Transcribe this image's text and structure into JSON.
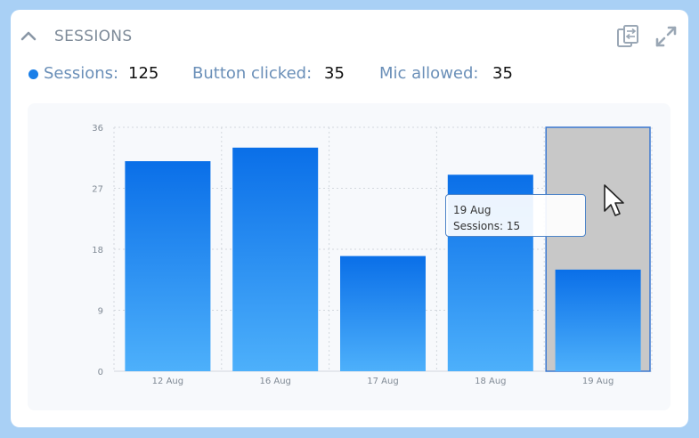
{
  "card": {
    "title": "SESSIONS",
    "icons": [
      "chevron-up-icon",
      "compare-icon",
      "expand-icon"
    ]
  },
  "stats": [
    {
      "label": "Sessions:",
      "value": "125",
      "dot_color": "#1a7fe8"
    },
    {
      "label": "Button clicked:",
      "value": "35"
    },
    {
      "label": "Mic allowed:",
      "value": "35"
    }
  ],
  "tooltip": {
    "date": "19 Aug",
    "text": "Sessions: 15"
  },
  "chart_data": {
    "type": "bar",
    "categories": [
      "12 Aug",
      "16 Aug",
      "17 Aug",
      "18 Aug",
      "19 Aug"
    ],
    "series": [
      {
        "name": "Sessions",
        "values": [
          31,
          33,
          17,
          29,
          15
        ]
      }
    ],
    "ylim": [
      0,
      36
    ],
    "yticks": [
      "0",
      "9",
      "18",
      "27",
      "36"
    ],
    "grid": true,
    "highlighted": "19 Aug",
    "colors": {
      "bar_top": "#0a6fe8",
      "bar_bottom": "#4db0fb",
      "highlight": "#c8c8c8"
    }
  }
}
